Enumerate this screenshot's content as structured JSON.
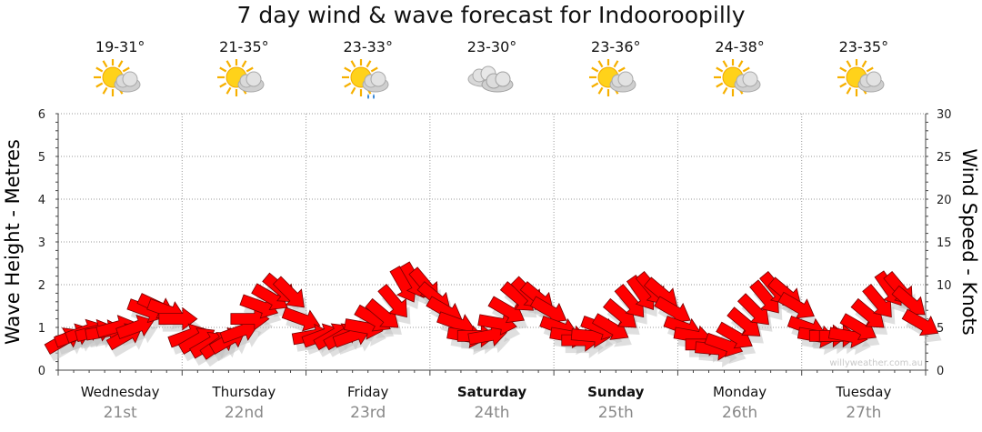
{
  "title": "7 day wind & wave forecast for Indooroopilly",
  "days": [
    {
      "name": "Wednesday",
      "date": "21st",
      "temp": "19-31°",
      "icon": "sun-cloud-icon",
      "bold": false
    },
    {
      "name": "Thursday",
      "date": "22nd",
      "temp": "21-35°",
      "icon": "sun-cloud-icon",
      "bold": false
    },
    {
      "name": "Friday",
      "date": "23rd",
      "temp": "23-33°",
      "icon": "sun-cloud-rain-icon",
      "bold": false
    },
    {
      "name": "Saturday",
      "date": "24th",
      "temp": "23-30°",
      "icon": "cloud-icon",
      "bold": true
    },
    {
      "name": "Sunday",
      "date": "25th",
      "temp": "23-36°",
      "icon": "sun-cloud-icon",
      "bold": true
    },
    {
      "name": "Monday",
      "date": "26th",
      "temp": "24-38°",
      "icon": "sun-cloud-icon",
      "bold": false
    },
    {
      "name": "Tuesday",
      "date": "27th",
      "temp": "23-35°",
      "icon": "sun-cloud-icon",
      "bold": false
    }
  ],
  "watermark": "willyweather.com.au",
  "colors": {
    "arrow_fill": "#ff0000",
    "arrow_stroke": "#7a0000",
    "grid": "#999999",
    "shadow": "#bfbfbf"
  },
  "chart_data": {
    "type": "line",
    "title": "7 day wind & wave forecast for Indooroopilly",
    "grid": true,
    "left_axis": {
      "label": "Wave Height - Metres",
      "ticks": [
        0,
        1,
        2,
        3,
        4,
        5,
        6
      ],
      "range": [
        0,
        6
      ]
    },
    "right_axis": {
      "label": "Wind Speed - Knots",
      "ticks": [
        0,
        5,
        10,
        15,
        20,
        25,
        30
      ],
      "range": [
        0,
        30
      ]
    },
    "x_categories": [
      "Wednesday 21st",
      "Thursday 22nd",
      "Friday 23rd",
      "Saturday 24th",
      "Sunday 25th",
      "Monday 26th",
      "Tuesday 27th"
    ],
    "series": [
      {
        "marker": "wind-direction-arrow",
        "x_days": [
          0.0,
          0.08,
          0.17,
          0.25,
          0.33,
          0.42,
          0.5,
          0.58,
          0.67,
          0.75,
          0.83,
          0.92,
          1.0,
          1.08,
          1.17,
          1.25,
          1.33,
          1.42,
          1.5,
          1.58,
          1.67,
          1.75,
          1.83,
          1.92,
          2.0,
          2.08,
          2.17,
          2.25,
          2.33,
          2.42,
          2.5,
          2.58,
          2.67,
          2.75,
          2.83,
          2.92,
          3.0,
          3.08,
          3.17,
          3.25,
          3.33,
          3.42,
          3.5,
          3.58,
          3.67,
          3.75,
          3.83,
          3.92,
          4.0,
          4.08,
          4.17,
          4.25,
          4.33,
          4.42,
          4.5,
          4.58,
          4.67,
          4.75,
          4.83,
          4.92,
          5.0,
          5.08,
          5.17,
          5.25,
          5.33,
          5.42,
          5.5,
          5.58,
          5.67,
          5.75,
          5.83,
          5.92,
          6.0,
          6.08,
          6.17,
          6.25,
          6.33,
          6.42,
          6.5,
          6.58,
          6.67,
          6.75,
          6.83,
          6.92
        ],
        "wind_knots": [
          3.5,
          4,
          4.5,
          4.5,
          4.5,
          5,
          4,
          5,
          7,
          7.5,
          7,
          6,
          4,
          3.5,
          3,
          3,
          3.5,
          4.5,
          6,
          7.5,
          8.5,
          9.5,
          9,
          6,
          4,
          4,
          4,
          4,
          4,
          5,
          6,
          6.5,
          8,
          10,
          10.5,
          10,
          8.5,
          7,
          5.5,
          4,
          4,
          4,
          5.5,
          7,
          8.5,
          9,
          8.5,
          7,
          5,
          4,
          3.5,
          4,
          5,
          5,
          6.5,
          8,
          9,
          9.5,
          9,
          7,
          5,
          4,
          3,
          2.5,
          3,
          4,
          5.5,
          7,
          8.5,
          9.5,
          9,
          7.5,
          5,
          4,
          4,
          4,
          4,
          5,
          6.5,
          8,
          9.5,
          9.5,
          8,
          5.5
        ],
        "direction_deg": [
          60,
          70,
          70,
          75,
          80,
          75,
          60,
          70,
          110,
          115,
          110,
          90,
          70,
          60,
          60,
          55,
          60,
          70,
          90,
          110,
          120,
          130,
          135,
          110,
          80,
          70,
          60,
          60,
          70,
          100,
          120,
          130,
          140,
          150,
          150,
          140,
          130,
          120,
          110,
          100,
          90,
          80,
          100,
          120,
          130,
          135,
          130,
          120,
          110,
          100,
          90,
          95,
          110,
          120,
          130,
          140,
          145,
          140,
          130,
          120,
          110,
          100,
          90,
          95,
          110,
          120,
          130,
          135,
          140,
          140,
          130,
          120,
          110,
          100,
          90,
          90,
          100,
          120,
          130,
          140,
          145,
          140,
          130,
          120
        ]
      }
    ]
  }
}
